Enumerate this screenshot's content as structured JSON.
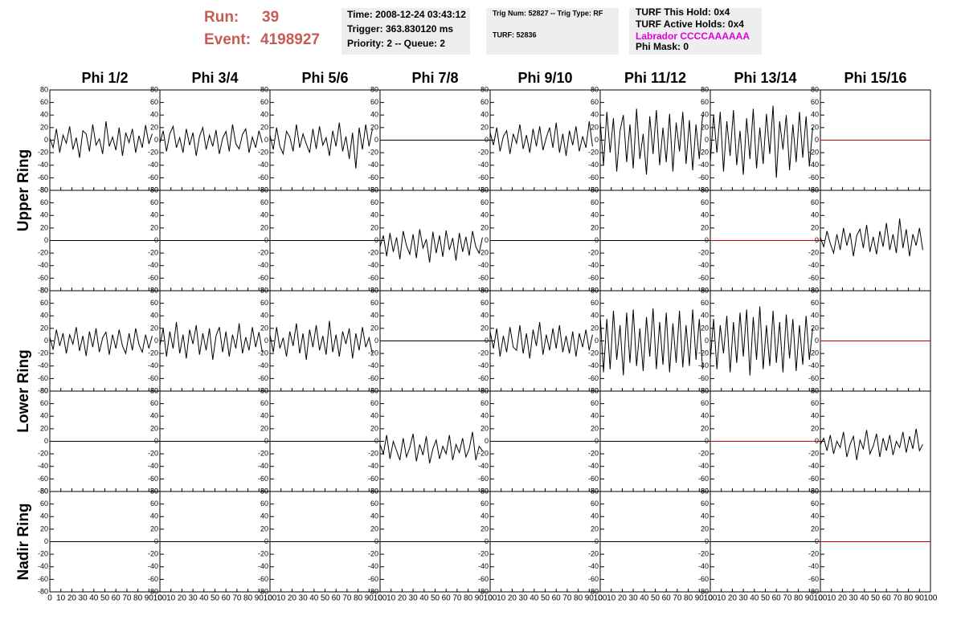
{
  "header": {
    "run_label": "Run:",
    "run": "39",
    "event_label": "Event:",
    "event": "4198927",
    "box1": [
      "Time: 2008-12-24 03:43:12",
      "Trigger: 363.830120 ms",
      "Priority: 2 -- Queue: 2"
    ],
    "box2": [
      "Trig Num: 52827 -- Trig Type: RF",
      "TURF: 52836"
    ],
    "box3": [
      "TURF This Hold: 0x4",
      "TURF Active Holds: 0x4",
      "Labrador CCCCAAAAAA",
      "Phi Mask: 0"
    ]
  },
  "chart_data": {
    "type": "line",
    "columns": [
      "Phi 1/2",
      "Phi 3/4",
      "Phi 5/6",
      "Phi 7/8",
      "Phi 9/10",
      "Phi 11/12",
      "Phi 13/14",
      "Phi 15/16"
    ],
    "row_labels": [
      "Upper Ring",
      "Lower Ring",
      "Nadir Ring"
    ],
    "xlim": [
      0,
      100
    ],
    "xticks": [
      0,
      10,
      20,
      30,
      40,
      50,
      60,
      70,
      80,
      90,
      100
    ],
    "ylim": [
      -80,
      80
    ],
    "yticks": [
      -80,
      -60,
      -40,
      -20,
      0,
      20,
      40,
      60,
      80
    ],
    "x": [
      0,
      3,
      6,
      9,
      12,
      15,
      18,
      21,
      24,
      27,
      30,
      33,
      36,
      39,
      42,
      45,
      48,
      51,
      54,
      57,
      60,
      63,
      66,
      69,
      72,
      75,
      78,
      81,
      84,
      87,
      90,
      93
    ],
    "panels": [
      [
        {
          "color": "#000000",
          "values": [
            3,
            -12,
            18,
            -20,
            8,
            -5,
            22,
            -15,
            4,
            -28,
            15,
            10,
            -18,
            25,
            -8,
            2,
            -22,
            30,
            -10,
            5,
            -16,
            20,
            -25,
            12,
            -4,
            18,
            -20,
            7,
            -12,
            24,
            -6,
            10
          ]
        },
        {
          "color": "#000000",
          "values": [
            -5,
            15,
            -18,
            10,
            22,
            -12,
            4,
            -20,
            18,
            -8,
            12,
            -25,
            6,
            20,
            -15,
            8,
            -10,
            16,
            -22,
            3,
            14,
            -18,
            25,
            -6,
            -14,
            9,
            18,
            -20,
            5,
            -12,
            15,
            -4
          ]
        },
        {
          "color": "#000000",
          "values": [
            8,
            -15,
            20,
            -10,
            -22,
            14,
            5,
            -18,
            25,
            -12,
            10,
            -6,
            -20,
            18,
            -14,
            22,
            -8,
            4,
            -25,
            15,
            -10,
            28,
            -18,
            6,
            -30,
            12,
            -45,
            20,
            -15,
            25,
            -10,
            18
          ]
        },
        {
          "color": "#000000",
          "x": [
            0,
            100
          ],
          "values": [
            0,
            0
          ]
        },
        {
          "color": "#000000",
          "values": [
            12,
            -8,
            20,
            -18,
            6,
            15,
            -22,
            10,
            -5,
            25,
            -14,
            8,
            -20,
            18,
            -10,
            22,
            -16,
            4,
            20,
            -12,
            28,
            -20,
            10,
            -25,
            15,
            -8,
            22,
            -18,
            6,
            -12,
            30,
            -10
          ]
        },
        {
          "color": "#000000",
          "values": [
            30,
            -40,
            45,
            -20,
            35,
            -50,
            15,
            40,
            -35,
            25,
            -45,
            50,
            -30,
            10,
            -55,
            38,
            -22,
            48,
            -40,
            20,
            -35,
            42,
            -50,
            28,
            -18,
            45,
            -38,
            32,
            -48,
            25,
            -30,
            40
          ]
        },
        {
          "color": "#000000",
          "values": [
            -35,
            40,
            -20,
            45,
            -50,
            30,
            -25,
            48,
            -40,
            15,
            -55,
            35,
            -30,
            50,
            -45,
            20,
            -38,
            42,
            -22,
            55,
            -60,
            30,
            -15,
            40,
            -48,
            25,
            -35,
            45,
            -28,
            38,
            -42,
            20
          ]
        },
        {
          "color": "#cc0000",
          "x": [
            0,
            100
          ],
          "values": [
            0,
            0
          ]
        }
      ],
      [
        {
          "color": "#000000",
          "x": [
            0,
            100
          ],
          "values": [
            0,
            0
          ]
        },
        {
          "color": "#000000",
          "x": [
            0,
            100
          ],
          "values": [
            0,
            0
          ]
        },
        {
          "color": "#000000",
          "x": [
            0,
            100
          ],
          "values": [
            0,
            0
          ]
        },
        {
          "color": "#000000",
          "values": [
            -10,
            8,
            -25,
            12,
            -18,
            5,
            -30,
            15,
            -8,
            -22,
            10,
            -28,
            18,
            -12,
            2,
            -35,
            14,
            -20,
            8,
            -26,
            16,
            -15,
            4,
            -32,
            12,
            -18,
            6,
            -24,
            15,
            -10,
            -20,
            5
          ]
        },
        {
          "color": "#000000",
          "x": [
            0,
            100
          ],
          "values": [
            0,
            0
          ]
        },
        {
          "color": "#000000",
          "x": [
            0,
            100
          ],
          "values": [
            0,
            0
          ]
        },
        {
          "color": "#cc0000",
          "x": [
            0,
            100
          ],
          "values": [
            0,
            0
          ]
        },
        {
          "color": "#000000",
          "values": [
            5,
            -10,
            15,
            -5,
            -20,
            10,
            -15,
            20,
            -8,
            12,
            -25,
            8,
            18,
            -12,
            25,
            -18,
            6,
            -22,
            15,
            -10,
            28,
            -15,
            10,
            -20,
            35,
            -12,
            18,
            -25,
            10,
            -8,
            20,
            -15
          ]
        }
      ],
      [
        {
          "color": "#000000",
          "values": [
            6,
            -14,
            18,
            -8,
            12,
            -20,
            10,
            -5,
            22,
            -16,
            8,
            -24,
            15,
            -10,
            20,
            -18,
            5,
            14,
            -22,
            10,
            -12,
            18,
            -8,
            -20,
            12,
            -15,
            20,
            -6,
            -18,
            10,
            -12,
            8
          ]
        },
        {
          "color": "#000000",
          "values": [
            -8,
            20,
            -25,
            15,
            -12,
            30,
            -20,
            10,
            -28,
            18,
            -5,
            25,
            -22,
            12,
            -15,
            20,
            -30,
            8,
            22,
            -18,
            15,
            -25,
            10,
            -12,
            28,
            -20,
            6,
            -15,
            22,
            -10,
            14,
            -18
          ]
        },
        {
          "color": "#000000",
          "values": [
            10,
            -18,
            22,
            -12,
            5,
            -25,
            15,
            -8,
            28,
            -20,
            12,
            -30,
            18,
            -10,
            25,
            -15,
            8,
            -22,
            32,
            -18,
            10,
            -25,
            15,
            -5,
            20,
            -28,
            12,
            -15,
            22,
            -10,
            5,
            -20
          ]
        },
        {
          "color": "#000000",
          "x": [
            0,
            100
          ],
          "values": [
            0,
            0
          ]
        },
        {
          "color": "#000000",
          "values": [
            15,
            -12,
            20,
            -25,
            8,
            -18,
            22,
            -10,
            -15,
            25,
            -20,
            12,
            -28,
            18,
            -8,
            30,
            -22,
            10,
            -15,
            20,
            -12,
            25,
            -18,
            8,
            -20,
            15,
            -25,
            12,
            -10,
            18,
            -15,
            10
          ]
        },
        {
          "color": "#000000",
          "values": [
            40,
            -50,
            35,
            -45,
            48,
            -30,
            25,
            -55,
            45,
            -35,
            50,
            -40,
            20,
            -48,
            38,
            -25,
            52,
            -45,
            30,
            -38,
            45,
            -50,
            28,
            -35,
            48,
            -42,
            25,
            -40,
            50,
            -30,
            35,
            -45
          ]
        },
        {
          "color": "#000000",
          "values": [
            -30,
            35,
            -45,
            25,
            -20,
            40,
            -50,
            30,
            -35,
            45,
            -25,
            50,
            -55,
            38,
            -30,
            55,
            -45,
            25,
            -40,
            48,
            -35,
            30,
            -50,
            42,
            -28,
            35,
            -48,
            25,
            -38,
            40,
            -30,
            20
          ]
        },
        {
          "color": "#cc0000",
          "x": [
            0,
            100
          ],
          "values": [
            0,
            0
          ]
        }
      ],
      [
        {
          "color": "#000000",
          "x": [
            0,
            100
          ],
          "values": [
            0,
            0
          ]
        },
        {
          "color": "#000000",
          "x": [
            0,
            100
          ],
          "values": [
            0,
            0
          ]
        },
        {
          "color": "#000000",
          "x": [
            0,
            100
          ],
          "values": [
            0,
            0
          ]
        },
        {
          "color": "#000000",
          "values": [
            -5,
            -20,
            10,
            -28,
            0,
            -15,
            -30,
            5,
            -25,
            -10,
            12,
            -32,
            -5,
            -22,
            8,
            -35,
            -12,
            2,
            -28,
            -8,
            -20,
            10,
            -30,
            -5,
            -18,
            5,
            -25,
            -12,
            15,
            -30,
            -8,
            -15
          ]
        },
        {
          "color": "#000000",
          "x": [
            0,
            100
          ],
          "values": [
            0,
            0
          ]
        },
        {
          "color": "#000000",
          "x": [
            0,
            100
          ],
          "values": [
            0,
            0
          ]
        },
        {
          "color": "#cc0000",
          "x": [
            0,
            100
          ],
          "values": [
            0,
            0
          ]
        },
        {
          "color": "#000000",
          "values": [
            -5,
            5,
            -15,
            10,
            -20,
            0,
            -10,
            15,
            -25,
            -5,
            8,
            -30,
            2,
            -12,
            18,
            -20,
            -8,
            12,
            -25,
            5,
            -15,
            10,
            -22,
            0,
            -10,
            15,
            -18,
            8,
            -12,
            20,
            -15,
            -5
          ]
        }
      ],
      [
        {
          "color": "#000000",
          "x": [
            0,
            100
          ],
          "values": [
            0,
            0
          ]
        },
        {
          "color": "#000000",
          "x": [
            0,
            100
          ],
          "values": [
            0,
            0
          ]
        },
        {
          "color": "#000000",
          "x": [
            0,
            100
          ],
          "values": [
            0,
            0
          ]
        },
        {
          "color": "#000000",
          "x": [
            0,
            100
          ],
          "values": [
            0,
            0
          ]
        },
        {
          "color": "#000000",
          "x": [
            0,
            100
          ],
          "values": [
            0,
            0
          ]
        },
        {
          "color": "#000000",
          "x": [
            0,
            100
          ],
          "values": [
            0,
            0
          ]
        },
        {
          "color": "#000000",
          "x": [
            0,
            100
          ],
          "values": [
            0,
            0
          ]
        },
        {
          "color": "#cc0000",
          "x": [
            0,
            100
          ],
          "values": [
            0,
            0
          ]
        }
      ]
    ]
  }
}
